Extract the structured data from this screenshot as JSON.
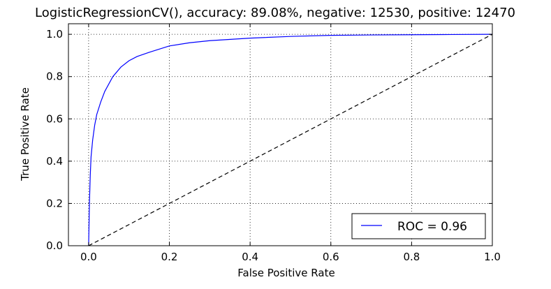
{
  "chart_data": {
    "type": "line",
    "title": "LogisticRegressionCV(), accuracy: 89.08%, negative: 12530, positive: 12470",
    "xlabel": "False Positive Rate",
    "ylabel": "True Positive Rate",
    "xlim": [
      -0.05,
      1.0
    ],
    "ylim": [
      0.0,
      1.05
    ],
    "x_ticks": [
      0.0,
      0.2,
      0.4,
      0.6,
      0.8,
      1.0
    ],
    "y_ticks": [
      0.0,
      0.2,
      0.4,
      0.6,
      0.8,
      1.0
    ],
    "x_tick_labels": [
      "0.0",
      "0.2",
      "0.4",
      "0.6",
      "0.8",
      "1.0"
    ],
    "y_tick_labels": [
      "0.0",
      "0.2",
      "0.4",
      "0.6",
      "0.8",
      "1.0"
    ],
    "grid": true,
    "legend_position": "lower-right",
    "series": [
      {
        "name": "ROC = 0.96",
        "color": "#0000ff",
        "style": "solid",
        "x": [
          0.0,
          0.002,
          0.004,
          0.006,
          0.01,
          0.015,
          0.02,
          0.03,
          0.04,
          0.05,
          0.06,
          0.08,
          0.1,
          0.12,
          0.15,
          0.2,
          0.25,
          0.3,
          0.4,
          0.5,
          0.6,
          0.7,
          0.8,
          0.9,
          1.0
        ],
        "y": [
          0.0,
          0.2,
          0.33,
          0.42,
          0.5,
          0.57,
          0.62,
          0.68,
          0.73,
          0.765,
          0.8,
          0.845,
          0.875,
          0.895,
          0.915,
          0.945,
          0.96,
          0.97,
          0.982,
          0.99,
          0.995,
          0.997,
          0.998,
          0.999,
          1.0
        ]
      },
      {
        "name": "",
        "color": "#000000",
        "style": "dashed",
        "x": [
          0.0,
          1.0
        ],
        "y": [
          0.0,
          1.0
        ]
      }
    ]
  }
}
